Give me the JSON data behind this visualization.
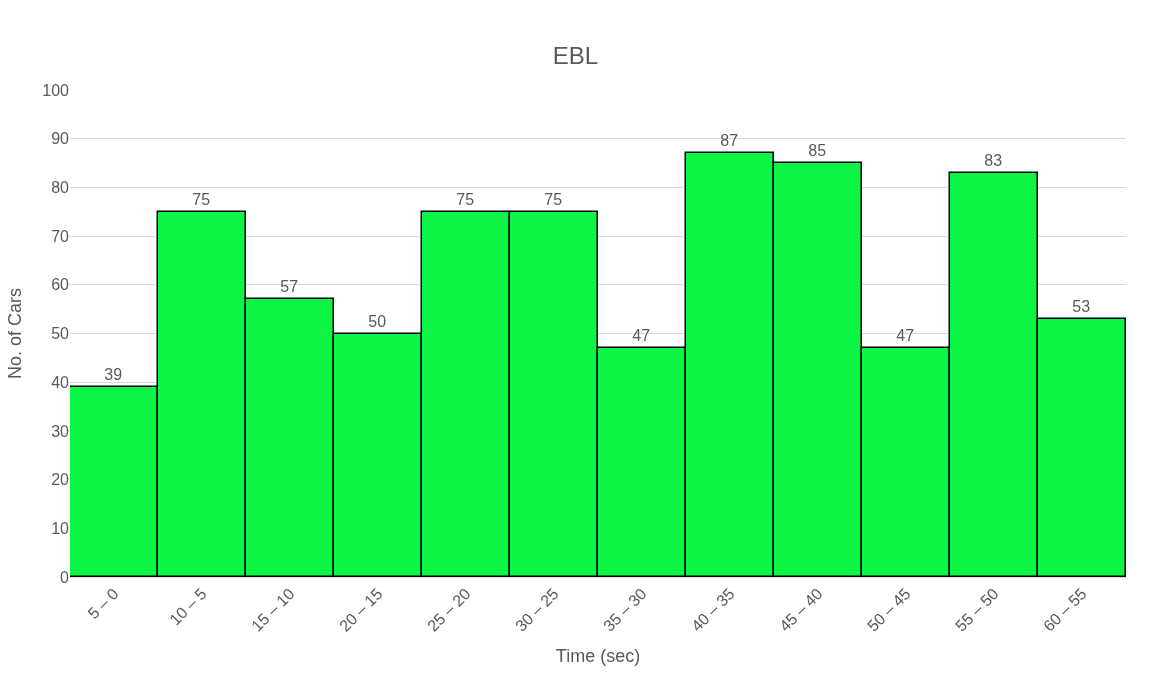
{
  "chart_data": {
    "type": "bar",
    "title": "EBL",
    "xlabel": "Time (sec)",
    "ylabel": "No. of Cars",
    "categories": [
      "5 – 0",
      "10 – 5",
      "15 – 10",
      "20 – 15",
      "25 – 20",
      "30 – 25",
      "35 – 30",
      "40 – 35",
      "45 – 40",
      "50 – 45",
      "55 – 50",
      "60 – 55"
    ],
    "values": [
      39,
      75,
      57,
      50,
      75,
      75,
      47,
      87,
      85,
      47,
      83,
      53
    ],
    "color": "#0cf545",
    "ylim": [
      0,
      100
    ],
    "yticks": [
      0,
      10,
      20,
      30,
      40,
      50,
      60,
      70,
      80,
      90,
      100
    ],
    "grid": "y",
    "data_labels": true,
    "legend": false
  }
}
